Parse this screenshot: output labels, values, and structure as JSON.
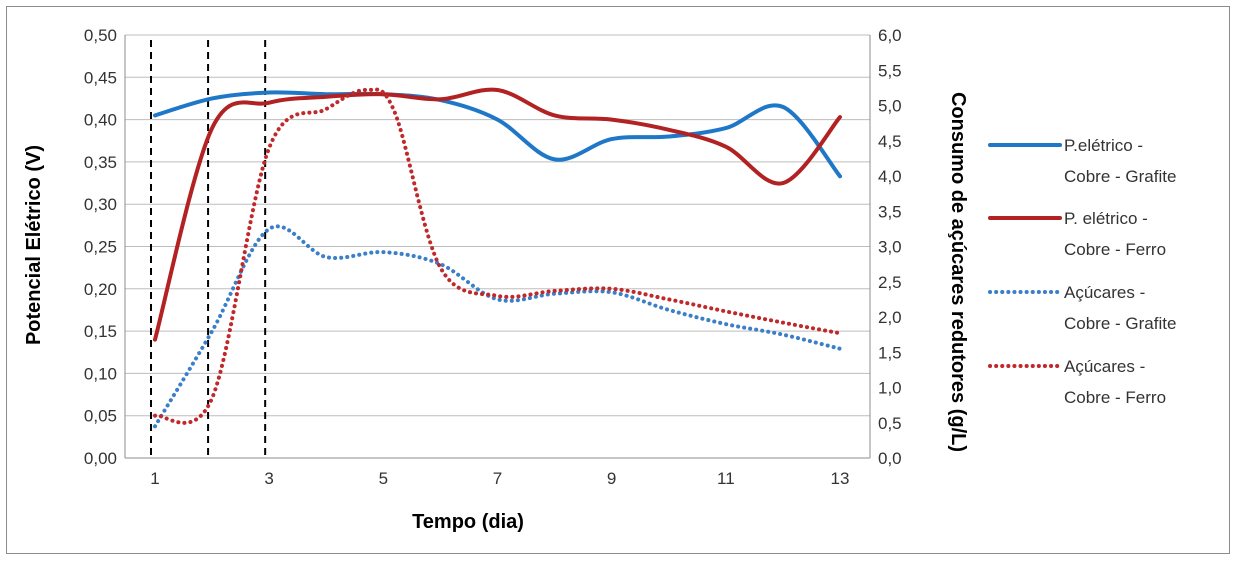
{
  "chart_data": {
    "type": "line",
    "xlabel": "Tempo (dia)",
    "ylabel": "Potencial Elétrico (V)",
    "y2label": "Consumo de açúcares redutores (g/L)",
    "xlim": [
      1,
      13
    ],
    "x_ticks": [
      1,
      3,
      5,
      7,
      9,
      11,
      13
    ],
    "x_tick_labels": [
      "1",
      "3",
      "5",
      "7",
      "9",
      "11",
      "13"
    ],
    "ylim": [
      0,
      0.5
    ],
    "y_ticks": [
      "0,00",
      "0,05",
      "0,10",
      "0,15",
      "0,20",
      "0,25",
      "0,30",
      "0,35",
      "0,40",
      "0,45",
      "0,50"
    ],
    "y2lim": [
      0,
      6
    ],
    "y2_ticks": [
      "0,0",
      "0,5",
      "1,0",
      "1,5",
      "2,0",
      "2,5",
      "3,0",
      "3,5",
      "4,0",
      "4,5",
      "5,0",
      "5,5",
      "6,0"
    ],
    "grid": true,
    "legend_position": "right",
    "vertical_markers": [
      1,
      2,
      3
    ],
    "series": [
      {
        "name": "P.elétrico - Cobre - Grafite",
        "legend_lines": [
          "P.elétrico -",
          "Cobre - Grafite"
        ],
        "axis": "left",
        "style": "solid",
        "color": "#1f77c8",
        "x": [
          1,
          2,
          3,
          4,
          5,
          6,
          7,
          8,
          9,
          10,
          11,
          12,
          13
        ],
        "values": [
          0.405,
          0.425,
          0.432,
          0.43,
          0.43,
          0.423,
          0.4,
          0.353,
          0.377,
          0.38,
          0.39,
          0.415,
          0.333
        ]
      },
      {
        "name": "P. elétrico - Cobre - Ferro",
        "legend_lines": [
          "P. elétrico -",
          "Cobre - Ferro"
        ],
        "axis": "left",
        "style": "solid",
        "color": "#b22222",
        "x": [
          1,
          2,
          3,
          4,
          5,
          6,
          7,
          8,
          9,
          10,
          11,
          12,
          13
        ],
        "values": [
          0.14,
          0.39,
          0.42,
          0.427,
          0.43,
          0.424,
          0.435,
          0.405,
          0.4,
          0.388,
          0.368,
          0.325,
          0.403
        ]
      },
      {
        "name": "Açúcares - Cobre - Grafite",
        "legend_lines": [
          "Açúcares -",
          "Cobre - Grafite"
        ],
        "axis": "right",
        "style": "dotted",
        "color": "#3a7fc8",
        "x": [
          1,
          2,
          3,
          4,
          5,
          6,
          7,
          8,
          9,
          10,
          11,
          12,
          13
        ],
        "values": [
          0.45,
          1.8,
          3.25,
          2.85,
          2.92,
          2.75,
          2.25,
          2.33,
          2.35,
          2.1,
          1.9,
          1.75,
          1.55
        ]
      },
      {
        "name": "Açúcares - Cobre - Ferro",
        "legend_lines": [
          "Açúcares -",
          "Cobre - Ferro"
        ],
        "axis": "right",
        "style": "dotted",
        "color": "#c0282a",
        "x": [
          1,
          2,
          3,
          4,
          4.7,
          5.2,
          6,
          7,
          8,
          9,
          10,
          11,
          12,
          13
        ],
        "values": [
          0.6,
          0.85,
          4.4,
          4.95,
          5.22,
          4.9,
          2.7,
          2.3,
          2.37,
          2.4,
          2.25,
          2.08,
          1.92,
          1.77
        ]
      }
    ]
  }
}
